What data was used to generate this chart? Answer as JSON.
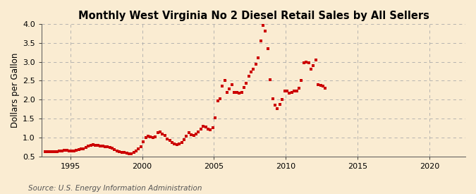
{
  "title": "Monthly West Virginia No 2 Diesel Retail Sales by All Sellers",
  "ylabel": "Dollars per Gallon",
  "source": "Source: U.S. Energy Information Administration",
  "ylim": [
    0.5,
    4.0
  ],
  "xlim": [
    1993.0,
    2022.5
  ],
  "yticks": [
    0.5,
    1.0,
    1.5,
    2.0,
    2.5,
    3.0,
    3.5,
    4.0
  ],
  "xticks": [
    1995,
    2000,
    2005,
    2010,
    2015,
    2020
  ],
  "background_color": "#faecd2",
  "plot_background_color": "#faecd2",
  "dot_color": "#cc0000",
  "dot_size": 5,
  "title_fontsize": 10.5,
  "label_fontsize": 8.5,
  "tick_fontsize": 8,
  "source_fontsize": 7.5,
  "data": [
    [
      1993.25,
      0.63
    ],
    [
      1993.42,
      0.62
    ],
    [
      1993.58,
      0.62
    ],
    [
      1993.75,
      0.62
    ],
    [
      1993.92,
      0.62
    ],
    [
      1994.08,
      0.63
    ],
    [
      1994.25,
      0.64
    ],
    [
      1994.42,
      0.65
    ],
    [
      1994.58,
      0.66
    ],
    [
      1994.75,
      0.66
    ],
    [
      1994.92,
      0.65
    ],
    [
      1995.08,
      0.64
    ],
    [
      1995.25,
      0.65
    ],
    [
      1995.42,
      0.67
    ],
    [
      1995.58,
      0.69
    ],
    [
      1995.75,
      0.7
    ],
    [
      1995.92,
      0.7
    ],
    [
      1996.08,
      0.73
    ],
    [
      1996.25,
      0.77
    ],
    [
      1996.42,
      0.8
    ],
    [
      1996.58,
      0.81
    ],
    [
      1996.75,
      0.8
    ],
    [
      1996.92,
      0.79
    ],
    [
      1997.08,
      0.77
    ],
    [
      1997.25,
      0.77
    ],
    [
      1997.42,
      0.76
    ],
    [
      1997.58,
      0.75
    ],
    [
      1997.75,
      0.73
    ],
    [
      1997.92,
      0.71
    ],
    [
      1998.08,
      0.68
    ],
    [
      1998.25,
      0.65
    ],
    [
      1998.42,
      0.63
    ],
    [
      1998.58,
      0.61
    ],
    [
      1998.75,
      0.6
    ],
    [
      1998.92,
      0.58
    ],
    [
      1999.08,
      0.57
    ],
    [
      1999.25,
      0.57
    ],
    [
      1999.42,
      0.61
    ],
    [
      1999.58,
      0.65
    ],
    [
      1999.75,
      0.7
    ],
    [
      1999.92,
      0.76
    ],
    [
      2000.08,
      0.88
    ],
    [
      2000.25,
      1.0
    ],
    [
      2000.42,
      1.04
    ],
    [
      2000.58,
      1.02
    ],
    [
      2000.75,
      0.99
    ],
    [
      2000.92,
      1.02
    ],
    [
      2001.08,
      1.12
    ],
    [
      2001.25,
      1.15
    ],
    [
      2001.42,
      1.1
    ],
    [
      2001.58,
      1.05
    ],
    [
      2001.75,
      0.97
    ],
    [
      2001.92,
      0.92
    ],
    [
      2002.08,
      0.87
    ],
    [
      2002.25,
      0.83
    ],
    [
      2002.42,
      0.82
    ],
    [
      2002.58,
      0.83
    ],
    [
      2002.75,
      0.87
    ],
    [
      2002.92,
      0.95
    ],
    [
      2003.08,
      1.04
    ],
    [
      2003.25,
      1.13
    ],
    [
      2003.42,
      1.08
    ],
    [
      2003.58,
      1.06
    ],
    [
      2003.75,
      1.09
    ],
    [
      2003.92,
      1.14
    ],
    [
      2004.08,
      1.22
    ],
    [
      2004.25,
      1.3
    ],
    [
      2004.42,
      1.28
    ],
    [
      2004.58,
      1.22
    ],
    [
      2004.75,
      1.2
    ],
    [
      2004.92,
      1.25
    ],
    [
      2005.08,
      1.52
    ],
    [
      2005.25,
      1.97
    ],
    [
      2005.42,
      2.02
    ],
    [
      2005.58,
      2.35
    ],
    [
      2005.75,
      2.5
    ],
    [
      2005.92,
      2.2
    ],
    [
      2006.08,
      2.28
    ],
    [
      2006.25,
      2.4
    ],
    [
      2006.42,
      2.2
    ],
    [
      2006.58,
      2.2
    ],
    [
      2006.75,
      2.17
    ],
    [
      2006.92,
      2.2
    ],
    [
      2007.08,
      2.33
    ],
    [
      2007.25,
      2.43
    ],
    [
      2007.42,
      2.62
    ],
    [
      2007.58,
      2.73
    ],
    [
      2007.75,
      2.8
    ],
    [
      2007.92,
      2.93
    ],
    [
      2008.08,
      3.1
    ],
    [
      2008.25,
      3.55
    ],
    [
      2008.42,
      3.97
    ],
    [
      2008.58,
      3.82
    ],
    [
      2008.75,
      3.35
    ],
    [
      2008.92,
      2.52
    ],
    [
      2009.08,
      2.02
    ],
    [
      2009.25,
      1.85
    ],
    [
      2009.42,
      1.77
    ],
    [
      2009.58,
      1.88
    ],
    [
      2009.75,
      2.0
    ],
    [
      2009.92,
      2.22
    ],
    [
      2010.08,
      2.22
    ],
    [
      2010.25,
      2.18
    ],
    [
      2010.42,
      2.2
    ],
    [
      2010.58,
      2.22
    ],
    [
      2010.75,
      2.22
    ],
    [
      2010.92,
      2.3
    ],
    [
      2011.08,
      2.5
    ],
    [
      2011.25,
      2.98
    ],
    [
      2011.42,
      3.0
    ],
    [
      2011.58,
      2.98
    ],
    [
      2011.75,
      2.8
    ],
    [
      2011.92,
      2.9
    ],
    [
      2012.08,
      3.05
    ],
    [
      2012.25,
      2.4
    ],
    [
      2012.42,
      2.38
    ],
    [
      2012.58,
      2.35
    ],
    [
      2012.75,
      2.3
    ]
  ]
}
